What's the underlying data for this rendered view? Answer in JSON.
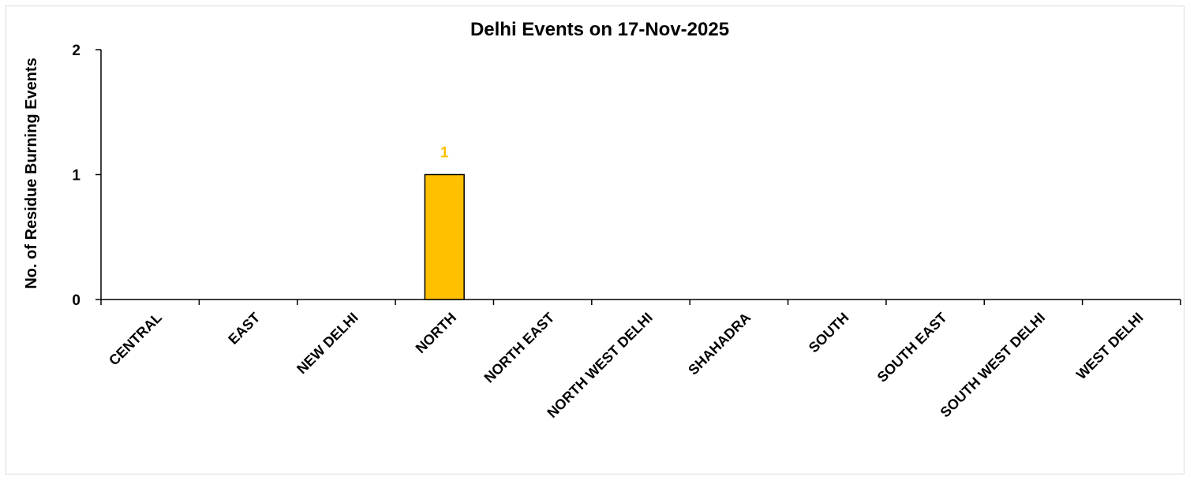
{
  "chart_data": {
    "type": "bar",
    "title": "Delhi Events on 17-Nov-2025",
    "xlabel": "",
    "ylabel": "No. of Residue Burning Events",
    "categories": [
      "CENTRAL",
      "EAST",
      "NEW DELHI",
      "NORTH",
      "NORTH EAST",
      "NORTH WEST DELHI",
      "SHAHADRA",
      "SOUTH",
      "SOUTH EAST",
      "SOUTH WEST DELHI",
      "WEST DELHI"
    ],
    "values": [
      0,
      0,
      0,
      1,
      0,
      0,
      0,
      0,
      0,
      0,
      0
    ],
    "data_labels": [
      "",
      "",
      "",
      "1",
      "",
      "",
      "",
      "",
      "",
      "",
      ""
    ],
    "ylim": [
      0,
      2
    ],
    "yticks": [
      "0",
      "1",
      "2"
    ],
    "grid": false,
    "legend": "none",
    "bar_color": "#FFC000",
    "bar_edge_color": "#000000",
    "label_color": "#FFC000"
  }
}
